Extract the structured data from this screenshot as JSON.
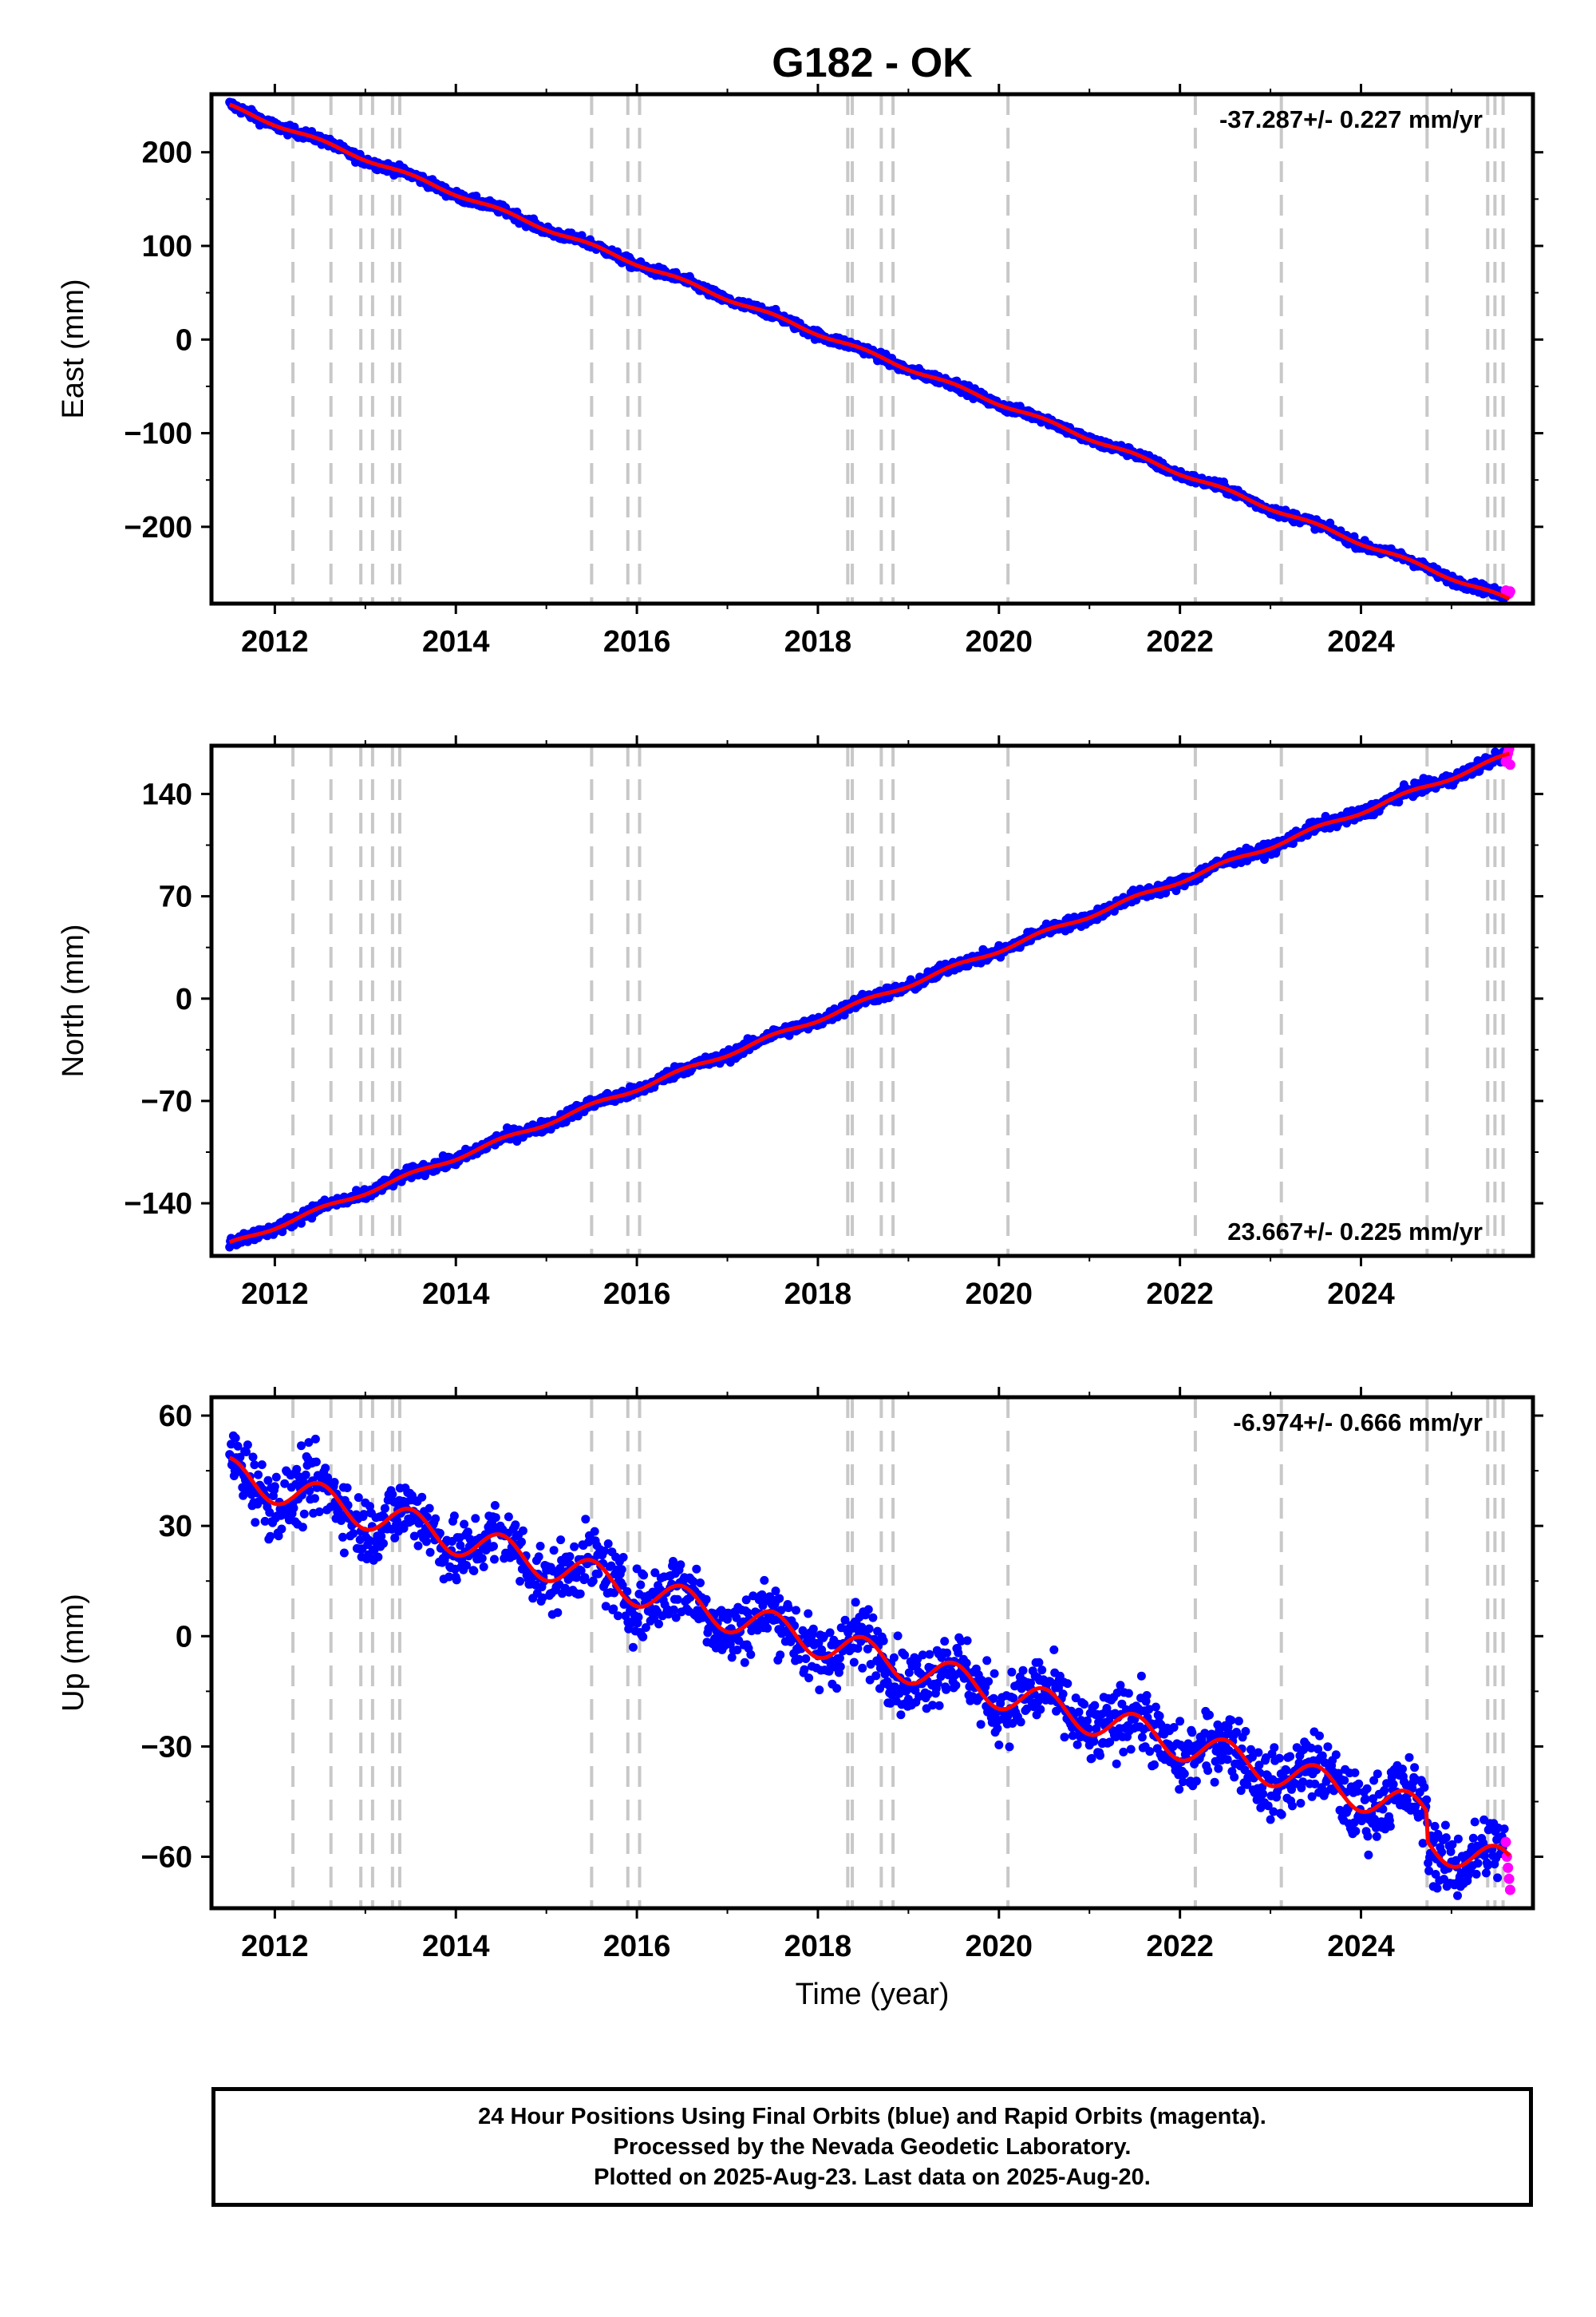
{
  "chart_data": {
    "title": "G182 - OK",
    "type": "scatter",
    "xlabel": "Time (year)",
    "xlim": [
      2011.3,
      2025.9
    ],
    "x_ticks": [
      2012,
      2014,
      2016,
      2018,
      2020,
      2022,
      2024
    ],
    "data_range": {
      "start": 2011.5,
      "end": 2025.64
    },
    "final_orbit_color": "#0000ff",
    "rapid_orbit_color": "#ff00ff",
    "fit_color": "#ff0000",
    "event_line_color": "#c8c8c8",
    "event_lines": [
      2012.2,
      2012.62,
      2012.95,
      2013.08,
      2013.3,
      2013.38,
      2015.5,
      2015.9,
      2016.03,
      2018.33,
      2018.38,
      2018.7,
      2018.83,
      2020.1,
      2022.17,
      2023.12,
      2024.73,
      2025.4,
      2025.48,
      2025.57
    ],
    "panels": [
      {
        "key": "east",
        "ylabel": "East (mm)",
        "ylim": [
          -282,
          262
        ],
        "y_ticks": [
          -200,
          -100,
          0,
          100,
          200
        ],
        "rate_text": "-37.287+/- 0.227 mm/yr",
        "rate_position": "top-right",
        "trend": {
          "start_value": 249,
          "rate": -37.287
        },
        "seasonal_amplitude": 2,
        "scatter_noise": 2.5,
        "steps": [],
        "rapid_points": [
          -268,
          -270,
          -272,
          -271,
          -269
        ]
      },
      {
        "key": "north",
        "ylabel": "North (mm)",
        "ylim": [
          -176,
          173
        ],
        "y_ticks": [
          -140,
          -70,
          0,
          70,
          140
        ],
        "rate_text": "23.667+/- 0.225 mm/yr",
        "rate_position": "bottom-right",
        "trend": {
          "start_value": -168,
          "rate": 23.667
        },
        "seasonal_amplitude": 1.5,
        "scatter_noise": 2.0,
        "steps": [],
        "rapid_points": [
          162,
          165,
          168,
          171,
          160
        ]
      },
      {
        "key": "up",
        "ylabel": "Up (mm)",
        "ylim": [
          -74,
          65
        ],
        "y_ticks": [
          -60,
          -30,
          0,
          30,
          60
        ],
        "rate_text": "-6.974+/- 0.666 mm/yr",
        "rate_position": "top-right",
        "trend": {
          "start_value": 44,
          "rate": -6.974
        },
        "seasonal_amplitude": 4.5,
        "scatter_noise": 4.5,
        "steps": [
          {
            "year": 2024.73,
            "value": -8
          }
        ],
        "rapid_points": [
          -56,
          -60,
          -63,
          -66,
          -69
        ]
      }
    ]
  },
  "footer": {
    "line1": "24 Hour Positions Using Final Orbits (blue) and Rapid Orbits (magenta).",
    "line2": "Processed by the Nevada Geodetic Laboratory.",
    "line3": "Plotted on 2025-Aug-23. Last data on 2025-Aug-20."
  }
}
